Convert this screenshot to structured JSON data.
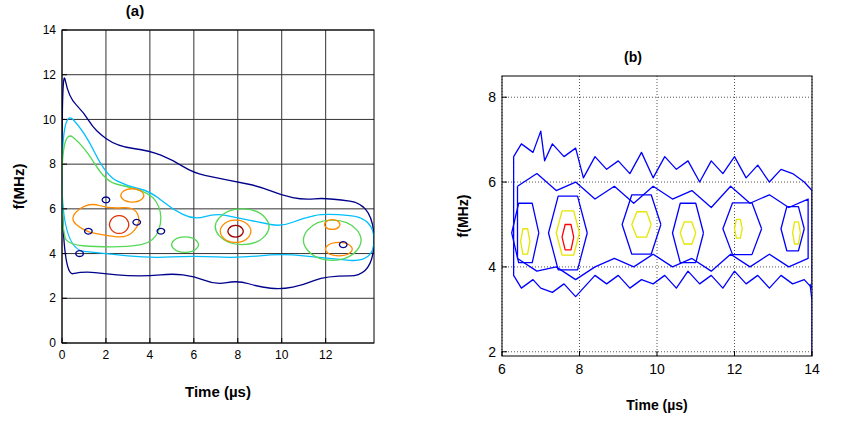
{
  "chart_data": [
    {
      "type": "contour",
      "title": "(a)",
      "x_label": "Time (µs)",
      "y_label": "f(MHz)",
      "xlim": [
        0,
        14.2
      ],
      "ylim": [
        0,
        14
      ],
      "xticks": [
        0,
        2,
        4,
        6,
        8,
        10,
        12
      ],
      "yticks": [
        0,
        2,
        4,
        6,
        8,
        10,
        12,
        14
      ],
      "grid": true,
      "line_style": "smooth",
      "series": [
        {
          "color": "#00008b",
          "x": [
            0,
            0.3,
            1,
            1.5,
            2.5,
            4,
            5,
            6,
            7,
            8,
            9,
            10,
            11,
            12,
            14.2,
            14.2,
            12,
            11,
            10,
            9,
            8,
            7,
            6,
            5,
            4,
            3,
            2,
            1,
            0,
            0
          ],
          "values": [
            12.5,
            11,
            10.3,
            9.5,
            8.8,
            8.6,
            8.2,
            7.6,
            7.4,
            7.2,
            7.0,
            6.6,
            6.4,
            6.5,
            6.2,
            3.0,
            3.0,
            2.6,
            2.4,
            2.5,
            2.8,
            2.6,
            3.0,
            3.1,
            3.0,
            3.0,
            3.1,
            3.2,
            3.0,
            12.5
          ]
        },
        {
          "color": "#00bfff",
          "x": [
            0,
            1,
            2,
            3,
            4,
            5,
            6,
            7,
            8,
            9,
            10,
            11,
            12,
            14.2,
            14.2,
            12,
            10,
            8,
            6,
            4,
            2,
            0,
            0
          ],
          "values": [
            10.5,
            9.5,
            7.5,
            7.0,
            6.8,
            6.0,
            5.5,
            5.8,
            5.6,
            5.4,
            5.2,
            5.6,
            5.8,
            5.6,
            3.6,
            3.8,
            4.0,
            3.8,
            3.9,
            3.8,
            4.0,
            4.2,
            10.5
          ]
        },
        {
          "color": "#55d855",
          "x": [
            0,
            1.0,
            2.0,
            3.0,
            4.2,
            4.6,
            4.2,
            3.0,
            1.5,
            0.4,
            0,
            0
          ],
          "values": [
            9.6,
            8.8,
            7.2,
            7.0,
            6.6,
            5.6,
            4.5,
            4.3,
            4.3,
            4.4,
            4.8,
            9.6
          ]
        },
        {
          "color": "#55d855",
          "x": [
            9.6,
            8.9,
            7.5,
            6.8,
            7.5,
            8.9,
            9.6
          ],
          "values": [
            5.2,
            6.0,
            6.0,
            5.2,
            4.4,
            4.4,
            5.2
          ]
        },
        {
          "color": "#55d855",
          "x": [
            13.8,
            13.05,
            11.55,
            10.8,
            11.55,
            13.05,
            13.8
          ],
          "values": [
            4.6,
            5.5,
            5.5,
            4.6,
            3.7,
            3.7,
            4.6
          ]
        },
        {
          "color": "#55d855",
          "x": [
            6.3,
            5.95,
            5.25,
            4.9,
            5.25,
            5.95,
            6.3
          ],
          "values": [
            4.4,
            4.75,
            4.75,
            4.4,
            4.05,
            4.05,
            4.4
          ]
        },
        {
          "color": "#ff8c00",
          "x": [
            0.3,
            1.2,
            2.2,
            3.3,
            3.6,
            3.0,
            2.0,
            1.0,
            0.3
          ],
          "values": [
            5.6,
            6.3,
            6.0,
            6.1,
            5.4,
            4.7,
            4.8,
            5.0,
            5.6
          ]
        },
        {
          "color": "#ff8c00",
          "x": [
            3.8,
            3.5,
            2.9,
            2.6,
            2.9,
            3.5,
            3.8
          ],
          "values": [
            6.6,
            6.9,
            6.9,
            6.6,
            6.3,
            6.3,
            6.6
          ]
        },
        {
          "color": "#ff8c00",
          "x": [
            8.7,
            8.3,
            7.5,
            7.1,
            7.5,
            8.3,
            8.7
          ],
          "values": [
            5.0,
            5.5,
            5.5,
            5.0,
            4.5,
            4.5,
            5.0
          ]
        },
        {
          "color": "#ff8c00",
          "x": [
            13.3,
            12.95,
            12.25,
            11.9,
            12.25,
            12.95,
            13.3
          ],
          "values": [
            4.2,
            4.5,
            4.5,
            4.2,
            3.9,
            3.9,
            4.2
          ]
        },
        {
          "color": "#ff8c00",
          "x": [
            12.7,
            12.5,
            12.1,
            11.9,
            12.1,
            12.5,
            12.7
          ],
          "values": [
            5.3,
            5.52,
            5.52,
            5.3,
            5.08,
            5.08,
            5.3
          ]
        },
        {
          "color": "#e03000",
          "x": [
            3.1,
            2.85,
            2.35,
            2.1,
            2.35,
            2.85,
            3.1
          ],
          "values": [
            5.3,
            5.7,
            5.7,
            5.3,
            4.9,
            4.9,
            5.3
          ]
        },
        {
          "color": "#a00000",
          "x": [
            8.3,
            8.1,
            7.7,
            7.5,
            7.7,
            8.1,
            8.3
          ],
          "values": [
            5.0,
            5.26,
            5.26,
            5.0,
            4.74,
            4.74,
            5.0
          ]
        },
        {
          "color": "#00008b",
          "x": [
            1.0,
            0.9,
            0.7,
            0.6,
            0.7,
            0.9,
            1.0
          ],
          "values": [
            4.0,
            4.13,
            4.13,
            4.0,
            3.87,
            3.87,
            4.0
          ]
        },
        {
          "color": "#00008b",
          "x": [
            1.4,
            1.3,
            1.1,
            1.0,
            1.1,
            1.3,
            1.4
          ],
          "values": [
            5.0,
            5.13,
            5.13,
            5.0,
            4.87,
            4.87,
            5.0
          ]
        },
        {
          "color": "#00008b",
          "x": [
            3.6,
            3.5,
            3.3,
            3.2,
            3.3,
            3.5,
            3.6
          ],
          "values": [
            5.4,
            5.53,
            5.53,
            5.4,
            5.27,
            5.27,
            5.4
          ]
        },
        {
          "color": "#00008b",
          "x": [
            4.7,
            4.6,
            4.4,
            4.3,
            4.4,
            4.6,
            4.7
          ],
          "values": [
            5.0,
            5.13,
            5.13,
            5.0,
            4.87,
            4.87,
            5.0
          ]
        },
        {
          "color": "#00008b",
          "x": [
            2.2,
            2.1,
            1.9,
            1.8,
            1.9,
            2.1,
            2.2
          ],
          "values": [
            6.4,
            6.53,
            6.53,
            6.4,
            6.27,
            6.27,
            6.4
          ]
        },
        {
          "color": "#00008b",
          "x": [
            13.0,
            12.9,
            12.7,
            12.6,
            12.7,
            12.9,
            13.0
          ],
          "values": [
            4.4,
            4.53,
            4.53,
            4.4,
            4.27,
            4.27,
            4.4
          ]
        }
      ]
    },
    {
      "type": "contour",
      "title": "(b)",
      "x_label": "Time (µs)",
      "y_label": "f(MHz)",
      "xlim": [
        6,
        14
      ],
      "ylim": [
        1.9,
        8.5
      ],
      "xticks": [
        6,
        8,
        10,
        12,
        14
      ],
      "yticks": [
        2,
        4,
        6,
        8
      ],
      "grid": true,
      "line_style": "solid",
      "series": [
        {
          "color": "#0000ff",
          "x": [
            6.3,
            6.5,
            6.8,
            7.0,
            7.1,
            7.3,
            7.6,
            7.9,
            8.1,
            8.4,
            8.7,
            9.0,
            9.3,
            9.6,
            9.9,
            10.2,
            10.5,
            10.8,
            11.1,
            11.4,
            11.7,
            12.0,
            12.3,
            12.6,
            12.9,
            13.2,
            13.5,
            13.8,
            14,
            14,
            13.8,
            13.5,
            13.2,
            12.9,
            12.6,
            12.3,
            12.0,
            11.7,
            11.4,
            11.1,
            10.8,
            10.5,
            10.2,
            9.9,
            9.6,
            9.3,
            9.0,
            8.7,
            8.4,
            8.1,
            7.9,
            7.6,
            7.3,
            7.0,
            6.8,
            6.5,
            6.3,
            6.3
          ],
          "values": [
            6.6,
            6.9,
            6.7,
            7.2,
            6.5,
            6.9,
            6.6,
            6.8,
            6.1,
            6.6,
            6.3,
            6.5,
            6.2,
            6.7,
            6.1,
            6.6,
            6.3,
            6.5,
            6.0,
            6.5,
            6.2,
            6.6,
            6.1,
            6.4,
            6.0,
            6.3,
            6.2,
            6.0,
            5.8,
            3.5,
            3.7,
            3.6,
            3.8,
            3.5,
            3.8,
            3.6,
            3.9,
            3.5,
            3.8,
            3.6,
            3.9,
            3.5,
            3.8,
            3.6,
            3.7,
            3.5,
            3.8,
            3.6,
            3.8,
            3.5,
            3.3,
            3.6,
            3.4,
            3.5,
            3.7,
            3.5,
            3.8,
            6.6
          ]
        },
        {
          "color": "#0000ff",
          "x": [
            6.4,
            6.9,
            7.4,
            7.9,
            8.4,
            8.9,
            9.4,
            9.9,
            10.4,
            10.9,
            11.4,
            11.9,
            12.4,
            12.9,
            13.4,
            13.9,
            13.9,
            13.4,
            12.9,
            12.4,
            11.9,
            11.4,
            10.9,
            10.4,
            9.9,
            9.4,
            8.9,
            8.4,
            7.9,
            7.4,
            6.9,
            6.4,
            6.4
          ],
          "values": [
            5.9,
            6.2,
            5.8,
            6.0,
            5.6,
            5.9,
            5.5,
            5.9,
            5.6,
            5.8,
            5.4,
            5.9,
            5.5,
            5.7,
            5.4,
            5.6,
            4.2,
            4.0,
            4.3,
            4.0,
            4.3,
            3.9,
            4.2,
            4.0,
            4.3,
            4.0,
            4.2,
            4.0,
            3.7,
            4.0,
            3.9,
            4.2,
            5.9
          ]
        },
        {
          "color": "#0000ff",
          "x": [
            6.95,
            6.78,
            6.43,
            6.25,
            6.43,
            6.78,
            6.95
          ],
          "values": [
            4.8,
            5.5,
            5.5,
            4.8,
            4.1,
            4.1,
            4.8
          ]
        },
        {
          "color": "#0000ff",
          "x": [
            8.2,
            7.95,
            7.45,
            7.2,
            7.45,
            7.95,
            8.2
          ],
          "values": [
            4.8,
            5.67,
            5.67,
            4.8,
            3.93,
            3.93,
            4.8
          ]
        },
        {
          "color": "#0000ff",
          "x": [
            10.1,
            9.85,
            9.35,
            9.1,
            9.35,
            9.85,
            10.1
          ],
          "values": [
            5.0,
            5.7,
            5.7,
            5.0,
            4.3,
            4.3,
            5.0
          ]
        },
        {
          "color": "#0000ff",
          "x": [
            11.2,
            11.0,
            10.6,
            10.4,
            10.6,
            11.0,
            11.2
          ],
          "values": [
            4.8,
            5.5,
            5.5,
            4.8,
            4.1,
            4.1,
            4.8
          ]
        },
        {
          "color": "#0000ff",
          "x": [
            12.7,
            12.45,
            11.95,
            11.7,
            11.95,
            12.45,
            12.7
          ],
          "values": [
            4.9,
            5.51,
            5.51,
            4.9,
            4.29,
            4.29,
            4.9
          ]
        },
        {
          "color": "#0000ff",
          "x": [
            13.8,
            13.65,
            13.35,
            13.2,
            13.35,
            13.65,
            13.8
          ],
          "values": [
            4.9,
            5.42,
            5.42,
            4.9,
            4.38,
            4.38,
            4.9
          ]
        },
        {
          "color": "#0000ff",
          "x": [
            13.95,
            14,
            14
          ],
          "values": [
            3.6,
            3.2,
            1.9
          ]
        },
        {
          "color": "#e6e600",
          "x": [
            6.72,
            6.66,
            6.54,
            6.48,
            6.54,
            6.66,
            6.72
          ],
          "values": [
            4.6,
            4.9,
            4.9,
            4.6,
            4.3,
            4.3,
            4.6
          ]
        },
        {
          "color": "#e6e600",
          "x": [
            8.0,
            7.85,
            7.55,
            7.4,
            7.55,
            7.85,
            8.0
          ],
          "values": [
            4.8,
            5.32,
            5.32,
            4.8,
            4.28,
            4.28,
            4.8
          ]
        },
        {
          "color": "#e6e600",
          "x": [
            9.85,
            9.73,
            9.48,
            9.35,
            9.48,
            9.73,
            9.85
          ],
          "values": [
            5.0,
            5.3,
            5.3,
            5.0,
            4.7,
            4.7,
            5.0
          ]
        },
        {
          "color": "#e6e600",
          "x": [
            11.0,
            10.9,
            10.7,
            10.6,
            10.7,
            10.9,
            11.0
          ],
          "values": [
            4.8,
            5.06,
            5.06,
            4.8,
            4.54,
            4.54,
            4.8
          ]
        },
        {
          "color": "#e6e600",
          "x": [
            12.2,
            12.15,
            12.05,
            12.0,
            12.05,
            12.15,
            12.2
          ],
          "values": [
            4.9,
            5.12,
            5.12,
            4.9,
            4.68,
            4.68,
            4.9
          ]
        },
        {
          "color": "#e6e600",
          "x": [
            13.7,
            13.65,
            13.55,
            13.5,
            13.55,
            13.65,
            13.7
          ],
          "values": [
            4.8,
            5.06,
            5.06,
            4.8,
            4.54,
            4.54,
            4.8
          ]
        },
        {
          "color": "#ff0000",
          "x": [
            7.85,
            7.78,
            7.63,
            7.55,
            7.63,
            7.78,
            7.85
          ],
          "values": [
            4.7,
            5.0,
            5.0,
            4.7,
            4.4,
            4.4,
            4.7
          ]
        }
      ]
    }
  ]
}
